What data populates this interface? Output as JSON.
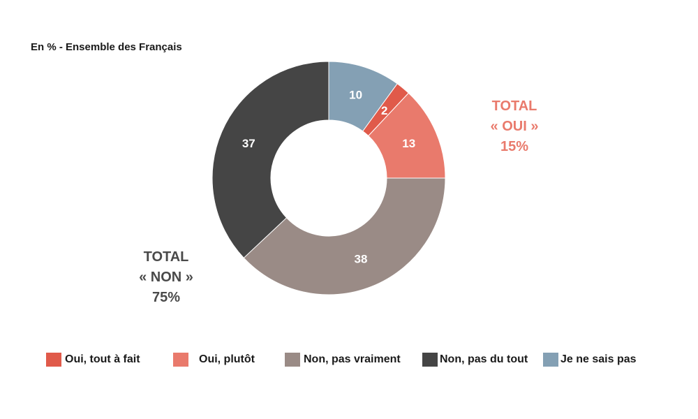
{
  "subtitle": "En % - Ensemble des Français",
  "chart_data": {
    "type": "pie",
    "donut": true,
    "unit": "%",
    "categories": [
      "Oui, tout à fait",
      "Oui, plutôt",
      "Non, pas vraiment",
      "Non, pas du tout",
      "Je ne sais pas"
    ],
    "values": [
      2,
      13,
      38,
      37,
      10
    ],
    "data_labels": [
      "2",
      "13",
      "38",
      "37",
      "10"
    ],
    "colors": [
      "#e05a4a",
      "#e97a6c",
      "#9a8b86",
      "#454545",
      "#84a0b4"
    ],
    "slice_order_clockwise_from_top": [
      "Je ne sais pas",
      "Oui, tout à fait",
      "Oui, plutôt",
      "Non, pas vraiment",
      "Non, pas du tout"
    ],
    "legend": {
      "position": "bottom",
      "items": [
        {
          "label": "Oui, tout à fait",
          "color": "#e05a4a"
        },
        {
          "label": "Oui, plutôt",
          "color": "#e97a6c"
        },
        {
          "label": "Non, pas vraiment",
          "color": "#9a8b86"
        },
        {
          "label": "Non, pas du tout",
          "color": "#454545"
        },
        {
          "label": "Je ne sais pas",
          "color": "#84a0b4"
        }
      ]
    },
    "annotations": [
      {
        "lines": [
          "TOTAL",
          "« OUI »",
          "15%"
        ],
        "color": "#e97a6c"
      },
      {
        "lines": [
          "TOTAL",
          "« NON »",
          "75%"
        ],
        "color": "#4a4a4a"
      }
    ]
  }
}
